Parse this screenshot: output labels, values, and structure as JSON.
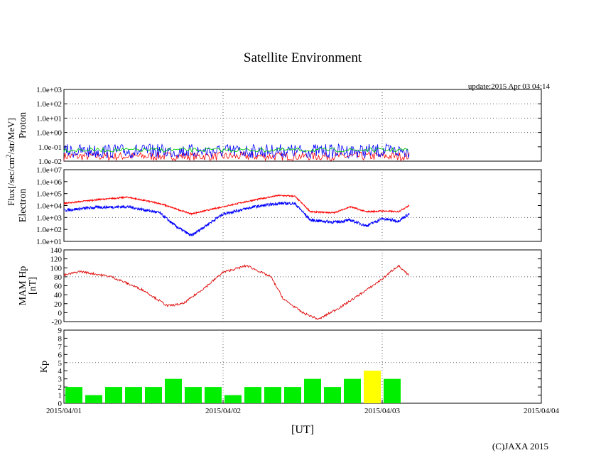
{
  "title": "Satellite Environment",
  "update": "update:2015 Apr 03 04:14",
  "copyright": "(C)JAXA 2015",
  "xlabel": "[UT]",
  "flux_unit_label": {
    "pre": "Flux[/sec/cm",
    "sup": "2",
    "post": "/str/MeV]"
  },
  "x_ticks": [
    "2015/04/01",
    "2015/04/02",
    "2015/04/03",
    "2015/04/04"
  ],
  "colors": {
    "proton_blue": "#0000ff",
    "proton_green": "#00cc00",
    "proton_red": "#ff0000",
    "electron_high": "#ff0000",
    "electron_low": "#0000ff",
    "hp": "#dd0000",
    "kp_green": "#00ee00",
    "kp_yellow": "#ffff00"
  },
  "chart_data": [
    {
      "type": "line",
      "panel": "Proton",
      "ylabel": "Proton",
      "log_scale": true,
      "ylim": [
        0.01,
        1000
      ],
      "y_ticks": [
        "1.0e-02",
        "1.0e-01",
        "1.0e+00",
        "1.0e+01",
        "1.0e+02",
        "1.0e+03"
      ],
      "grid": "dotted",
      "series": [
        {
          "color": "blue",
          "baseline_value": 0.05,
          "note_range": [
            0.02,
            0.1
          ]
        },
        {
          "color": "green",
          "baseline_value": 0.06
        },
        {
          "color": "red",
          "baseline_value": 0.015
        }
      ],
      "x_range_days": [
        0,
        2.17
      ]
    },
    {
      "type": "line",
      "panel": "Electron",
      "ylabel": "Electron",
      "log_scale": true,
      "ylim": [
        10,
        10000000
      ],
      "y_ticks": [
        "1.0e+01",
        "1.0e+02",
        "1.0e+03",
        "1.0e+04",
        "1.0e+05",
        "1.0e+06",
        "1.0e+07"
      ],
      "series": [
        {
          "color": "red",
          "x": [
            0,
            0.2,
            0.4,
            0.6,
            0.8,
            1.0,
            1.2,
            1.35,
            1.45,
            1.55,
            1.7,
            1.8,
            1.9,
            2.0,
            2.1,
            2.17
          ],
          "y": [
            15000,
            30000,
            50000,
            15000,
            2000,
            8000,
            30000,
            70000,
            60000,
            3000,
            2500,
            8000,
            3000,
            3500,
            3000,
            10000
          ]
        },
        {
          "color": "blue",
          "x": [
            0,
            0.2,
            0.4,
            0.6,
            0.7,
            0.8,
            1.0,
            1.2,
            1.35,
            1.45,
            1.55,
            1.7,
            1.8,
            1.9,
            2.0,
            2.1,
            2.17
          ],
          "y": [
            4000,
            7000,
            8000,
            2500,
            200,
            30,
            2000,
            8000,
            15000,
            15000,
            600,
            400,
            600,
            200,
            800,
            500,
            2000
          ]
        }
      ],
      "x_range_days": [
        0,
        2.17
      ]
    },
    {
      "type": "line",
      "panel": "MAM Hp",
      "ylabel": "MAM Hp",
      "ylabel2": "[nT]",
      "ylim": [
        -20,
        140
      ],
      "y_ticks": [
        "-20",
        "0",
        "20",
        "40",
        "60",
        "80",
        "100",
        "120",
        "140"
      ],
      "series": [
        {
          "color": "red",
          "x": [
            0,
            0.1,
            0.3,
            0.5,
            0.65,
            0.75,
            0.9,
            1.0,
            1.15,
            1.3,
            1.38,
            1.5,
            1.6,
            1.75,
            1.9,
            2.0,
            2.1,
            2.17
          ],
          "y": [
            83,
            92,
            80,
            50,
            15,
            20,
            60,
            90,
            105,
            80,
            30,
            0,
            -15,
            15,
            50,
            75,
            105,
            82
          ]
        }
      ],
      "x_range_days": [
        0,
        2.17
      ]
    },
    {
      "type": "bar",
      "panel": "Kp",
      "ylabel": "Kp",
      "ylim": [
        0,
        9
      ],
      "y_ticks": [
        "0",
        "1",
        "2",
        "3",
        "4",
        "5",
        "6",
        "7",
        "8",
        "9"
      ],
      "reference_line": 5,
      "bin_hours": 3,
      "values": [
        2,
        1,
        2,
        2,
        2,
        3,
        2,
        2,
        1,
        2,
        2,
        2,
        3,
        2,
        3,
        4,
        3
      ],
      "colors": [
        "green",
        "green",
        "green",
        "green",
        "green",
        "green",
        "green",
        "green",
        "green",
        "green",
        "green",
        "green",
        "green",
        "green",
        "green",
        "yellow",
        "green"
      ]
    }
  ]
}
